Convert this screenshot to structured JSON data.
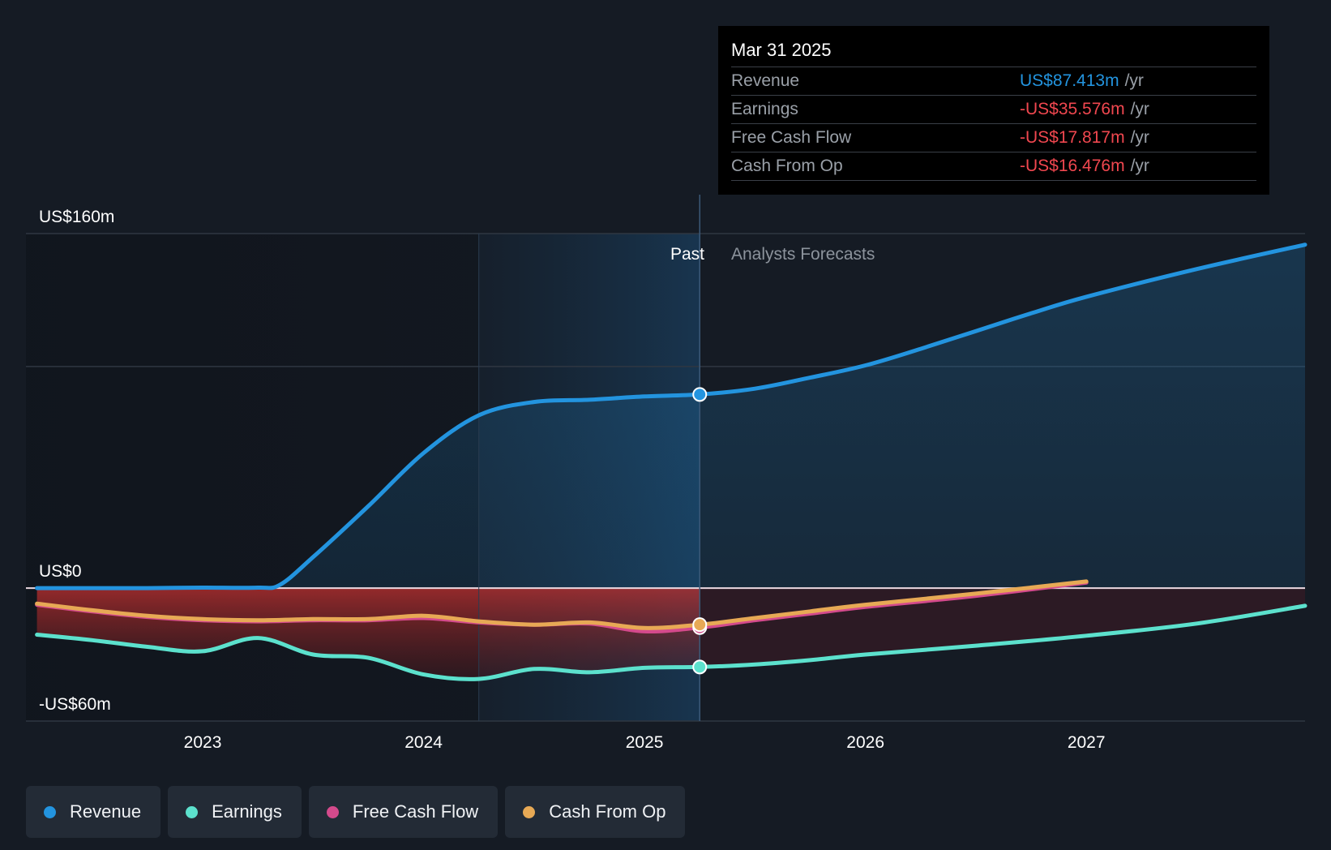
{
  "colors": {
    "background": "#151b24",
    "revenue": "#2394df",
    "earnings": "#5ce1cd",
    "free_cash_flow": "#d44a8c",
    "cash_from_op": "#e7a955",
    "negative_value": "#f0474f",
    "positive_value": "#2394df"
  },
  "tooltip": {
    "date": "Mar 31 2025",
    "unit": "/yr",
    "rows": [
      {
        "label": "Revenue",
        "value": "US$87.413m",
        "tone": "positive"
      },
      {
        "label": "Earnings",
        "value": "-US$35.576m",
        "tone": "negative"
      },
      {
        "label": "Free Cash Flow",
        "value": "-US$17.817m",
        "tone": "negative"
      },
      {
        "label": "Cash From Op",
        "value": "-US$16.476m",
        "tone": "negative"
      }
    ]
  },
  "regions": {
    "past_label": "Past",
    "forecast_label": "Analysts Forecasts"
  },
  "legend": [
    {
      "label": "Revenue",
      "color": "#2394df"
    },
    {
      "label": "Earnings",
      "color": "#5ce1cd"
    },
    {
      "label": "Free Cash Flow",
      "color": "#d44a8c"
    },
    {
      "label": "Cash From Op",
      "color": "#e7a955"
    }
  ],
  "chart_data": {
    "type": "line",
    "title": "",
    "xlabel": "",
    "ylabel": "",
    "xlim": [
      2022.2,
      2027.99
    ],
    "ylim": [
      -60,
      160
    ],
    "y_labels": [
      {
        "value": 160,
        "text": "US$160m"
      },
      {
        "value": 0,
        "text": "US$0"
      },
      {
        "value": -60,
        "text": "-US$60m"
      }
    ],
    "gridlines": [
      160,
      100,
      0,
      -60
    ],
    "x_ticks": [
      {
        "value": 2023,
        "text": "2023"
      },
      {
        "value": 2024,
        "text": "2024"
      },
      {
        "value": 2025,
        "text": "2025"
      },
      {
        "value": 2026,
        "text": "2026"
      },
      {
        "value": 2027,
        "text": "2027"
      }
    ],
    "highlight_start": 2024.25,
    "divider": 2025.25,
    "marker_x": 2025.25,
    "series": [
      {
        "name": "Revenue",
        "key": "revenue",
        "color": "#2394df",
        "x": [
          2022.25,
          2022.5,
          2022.75,
          2023.0,
          2023.25,
          2023.35,
          2023.5,
          2023.75,
          2024.0,
          2024.25,
          2024.5,
          2024.75,
          2025.0,
          2025.25,
          2025.5,
          2025.75,
          2026.0,
          2026.25,
          2026.5,
          2026.75,
          2027.0,
          2027.5,
          2027.99
        ],
        "y": [
          0,
          0,
          0,
          0.2,
          0.2,
          1.5,
          14,
          37,
          61,
          78,
          84,
          85,
          86.5,
          87.4,
          90,
          95,
          100.5,
          108,
          116,
          124,
          131.5,
          144,
          155
        ]
      },
      {
        "name": "Earnings",
        "key": "earnings",
        "color": "#5ce1cd",
        "x": [
          2022.25,
          2022.5,
          2022.75,
          2023.0,
          2023.25,
          2023.5,
          2023.75,
          2024.0,
          2024.25,
          2024.5,
          2024.75,
          2025.0,
          2025.25,
          2025.5,
          2025.75,
          2026.0,
          2026.5,
          2027.0,
          2027.5,
          2027.99
        ],
        "y": [
          -21,
          -23.5,
          -26.5,
          -28.5,
          -22.5,
          -30,
          -31.5,
          -39,
          -41,
          -36.5,
          -38,
          -36,
          -35.6,
          -34.5,
          -32.5,
          -30,
          -26,
          -21.5,
          -16,
          -8
        ]
      },
      {
        "name": "Free Cash Flow",
        "key": "free_cash_flow",
        "color": "#d44a8c",
        "x": [
          2022.25,
          2022.5,
          2022.75,
          2023.0,
          2023.25,
          2023.5,
          2023.75,
          2024.0,
          2024.25,
          2024.5,
          2024.75,
          2025.0,
          2025.25,
          2025.5,
          2025.75,
          2026.0,
          2026.5,
          2027.0
        ],
        "y": [
          -7.5,
          -10.5,
          -13,
          -14.5,
          -15,
          -14.5,
          -14.5,
          -13.5,
          -15.5,
          -16.5,
          -16,
          -19.5,
          -17.8,
          -14.5,
          -11.5,
          -8.5,
          -3.5,
          2.5
        ]
      },
      {
        "name": "Cash From Op",
        "key": "cash_from_op",
        "color": "#e7a955",
        "x": [
          2022.25,
          2022.5,
          2022.75,
          2023.0,
          2023.25,
          2023.5,
          2023.75,
          2024.0,
          2024.25,
          2024.5,
          2024.75,
          2025.0,
          2025.25,
          2025.5,
          2025.75,
          2026.0,
          2026.5,
          2027.0
        ],
        "y": [
          -7,
          -10,
          -12.5,
          -14,
          -14.5,
          -14,
          -14,
          -12.5,
          -15,
          -16.5,
          -15.5,
          -18,
          -16.5,
          -13.5,
          -10.5,
          -7.5,
          -2.5,
          3
        ]
      }
    ]
  }
}
